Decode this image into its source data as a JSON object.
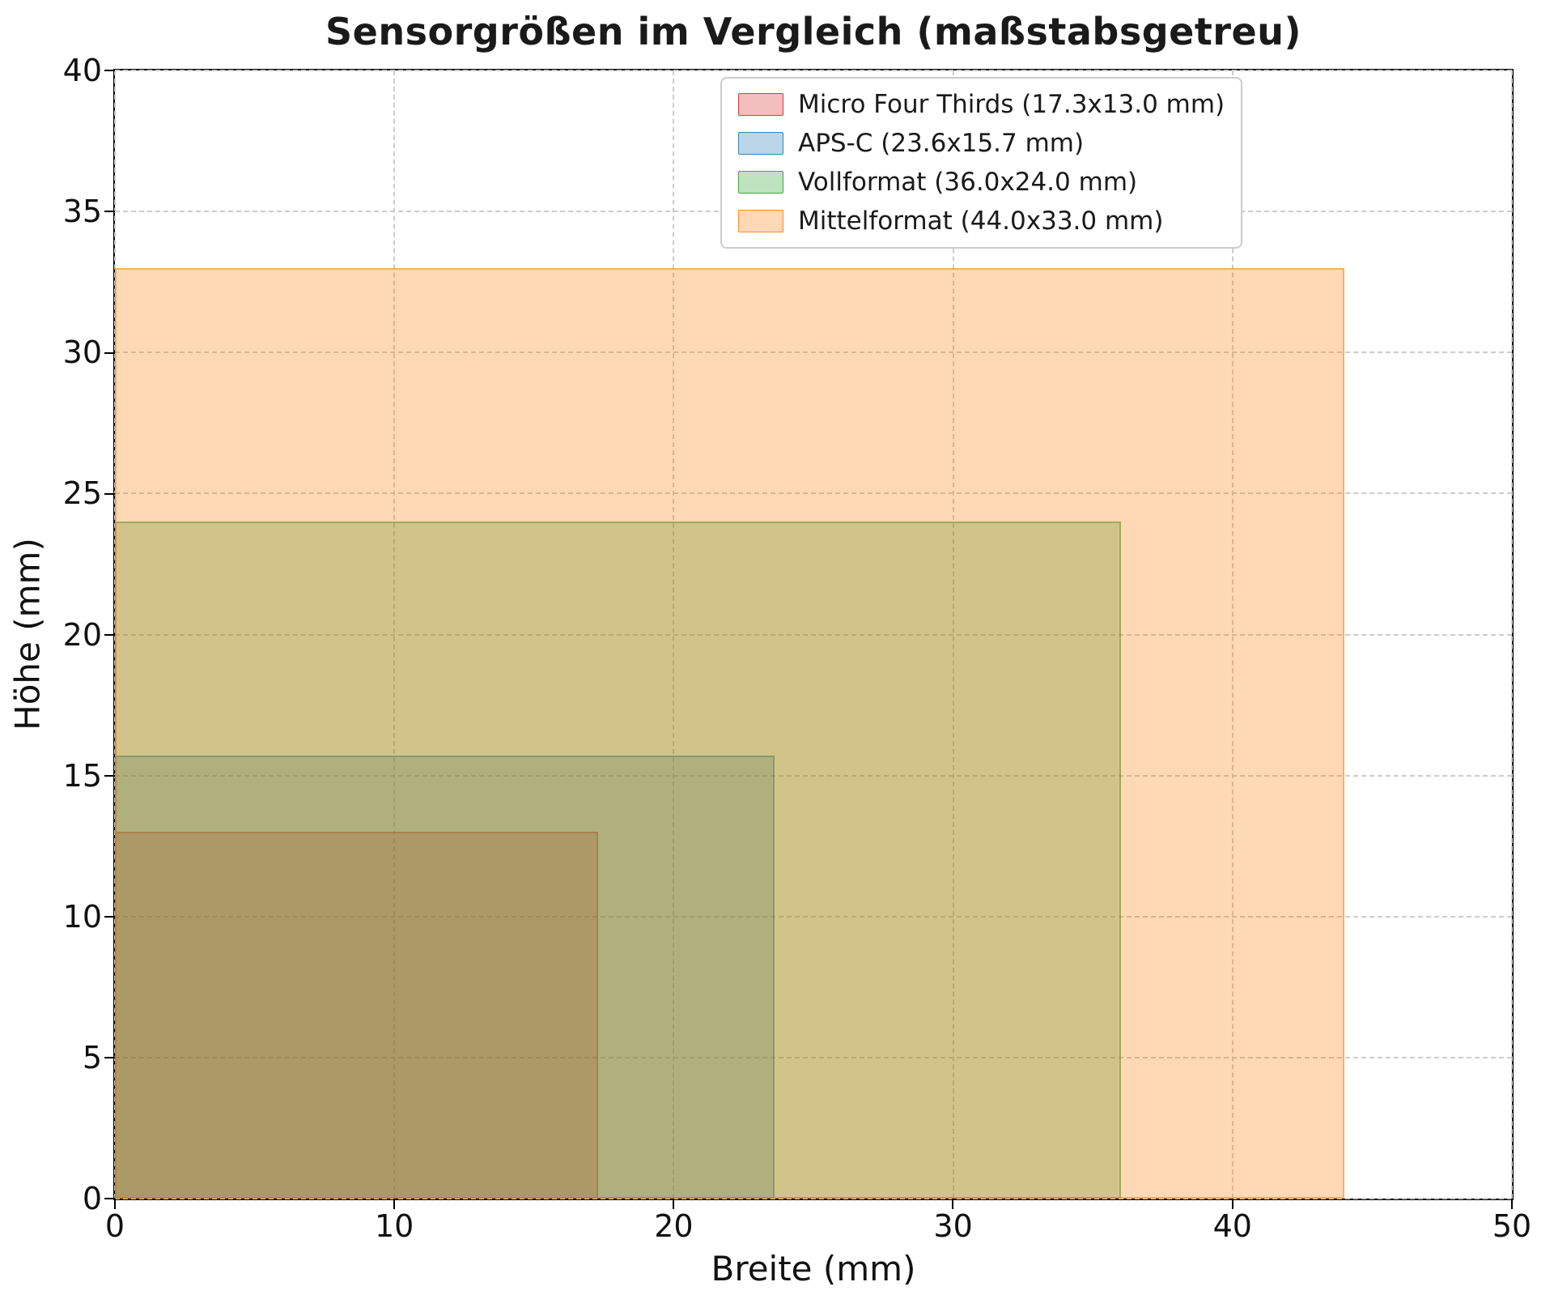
{
  "chart_data": {
    "type": "area",
    "title": "Sensorgrößen im Vergleich (maßstabsgetreu)",
    "xlabel": "Breite (mm)",
    "ylabel": "Höhe (mm)",
    "xlim": [
      0,
      50
    ],
    "ylim": [
      0,
      40
    ],
    "xticks": [
      0,
      10,
      20,
      30,
      40,
      50
    ],
    "yticks": [
      0,
      5,
      10,
      15,
      20,
      25,
      30,
      35,
      40
    ],
    "grid": true,
    "grid_linestyle": "dashed",
    "grid_color": "#cccccc",
    "axes_color": "#000000",
    "background": "#ffffff",
    "legend": {
      "position": "upper-right-inset",
      "background": "#ffffff",
      "border_color": "#cccccc"
    },
    "series": [
      {
        "key": "micro-four-thirds",
        "name": "Micro Four Thirds (17.3x13.0 mm)",
        "width_mm": 17.3,
        "height_mm": 13.0,
        "color": "#d62728",
        "alpha": 0.3
      },
      {
        "key": "aps-c",
        "name": "APS-C (23.6x15.7 mm)",
        "width_mm": 23.6,
        "height_mm": 15.7,
        "color": "#1f77b4",
        "alpha": 0.3
      },
      {
        "key": "vollformat",
        "name": "Vollformat (36.0x24.0 mm)",
        "width_mm": 36.0,
        "height_mm": 24.0,
        "color": "#2ca02c",
        "alpha": 0.3
      },
      {
        "key": "mittelformat",
        "name": "Mittelformat (44.0x33.0 mm)",
        "width_mm": 44.0,
        "height_mm": 33.0,
        "color": "#ff7f0e",
        "alpha": 0.3
      }
    ]
  }
}
